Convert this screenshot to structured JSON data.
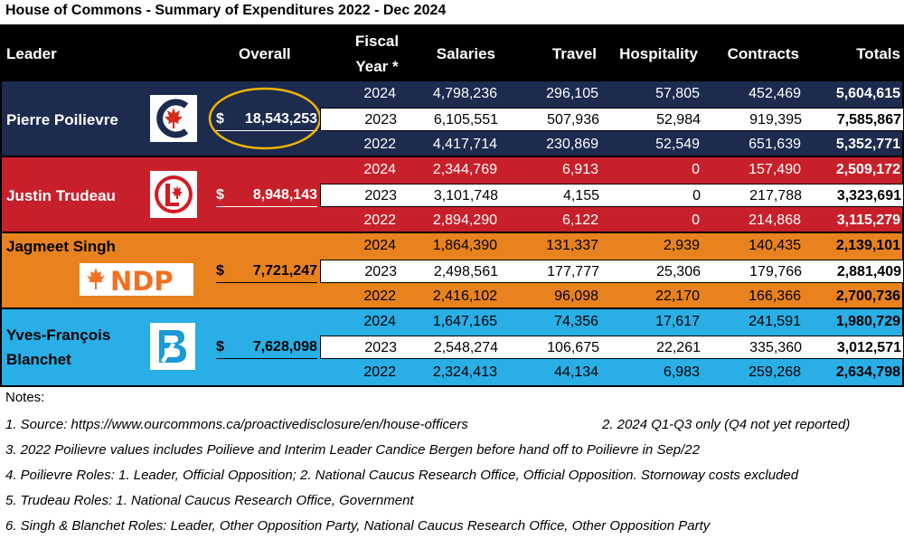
{
  "title": "House of Commons - Summary of Expenditures 2022 - Dec 2024",
  "colors": {
    "header_bg": "#000000",
    "conservative": "#1d2b4f",
    "liberal": "#c8202a",
    "ndp": "#e8821e",
    "bloc": "#29aee6",
    "highlight_circle": "#f0b400"
  },
  "headers": {
    "leader": "Leader",
    "overall": "Overall",
    "fiscal_year_line1": "Fiscal",
    "fiscal_year_line2": "Year *",
    "salaries": "Salaries",
    "travel": "Travel",
    "hospitality": "Hospitality",
    "contracts": "Contracts",
    "totals": "Totals"
  },
  "chart_data": {
    "type": "table",
    "title": "House of Commons - Summary of Expenditures 2022 - Dec 2024",
    "columns": [
      "Leader",
      "Overall",
      "Fiscal Year *",
      "Salaries",
      "Travel",
      "Hospitality",
      "Contracts",
      "Totals"
    ],
    "groups": [
      {
        "leader": "Pierre Poilievre",
        "logo": "conservative-logo-icon",
        "overall_symbol": "$",
        "overall": "18,543,253",
        "rows": [
          {
            "year": "2024",
            "salaries": "4,798,236",
            "travel": "296,105",
            "hospitality": "57,805",
            "contracts": "452,469",
            "totals": "5,604,615"
          },
          {
            "year": "2023",
            "salaries": "6,105,551",
            "travel": "507,936",
            "hospitality": "52,984",
            "contracts": "919,395",
            "totals": "7,585,867"
          },
          {
            "year": "2022",
            "salaries": "4,417,714",
            "travel": "230,869",
            "hospitality": "52,549",
            "contracts": "651,639",
            "totals": "5,352,771"
          }
        ]
      },
      {
        "leader": "Justin Trudeau",
        "logo": "liberal-logo-icon",
        "overall_symbol": "$",
        "overall": "8,948,143",
        "rows": [
          {
            "year": "2024",
            "salaries": "2,344,769",
            "travel": "6,913",
            "hospitality": "0",
            "contracts": "157,490",
            "totals": "2,509,172"
          },
          {
            "year": "2023",
            "salaries": "3,101,748",
            "travel": "4,155",
            "hospitality": "0",
            "contracts": "217,788",
            "totals": "3,323,691"
          },
          {
            "year": "2022",
            "salaries": "2,894,290",
            "travel": "6,122",
            "hospitality": "0",
            "contracts": "214,868",
            "totals": "3,115,279"
          }
        ]
      },
      {
        "leader": "Jagmeet Singh",
        "logo": "ndp-logo-icon",
        "logo_text": "NDP",
        "overall_symbol": "$",
        "overall": "7,721,247",
        "rows": [
          {
            "year": "2024",
            "salaries": "1,864,390",
            "travel": "131,337",
            "hospitality": "2,939",
            "contracts": "140,435",
            "totals": "2,139,101"
          },
          {
            "year": "2023",
            "salaries": "2,498,561",
            "travel": "177,777",
            "hospitality": "25,306",
            "contracts": "179,766",
            "totals": "2,881,409"
          },
          {
            "year": "2022",
            "salaries": "2,416,102",
            "travel": "96,098",
            "hospitality": "22,170",
            "contracts": "166,366",
            "totals": "2,700,736"
          }
        ]
      },
      {
        "leader_line1": "Yves-François",
        "leader_line2": "Blanchet",
        "logo": "bloc-logo-icon",
        "overall_symbol": "$",
        "overall": "7,628,098",
        "rows": [
          {
            "year": "2024",
            "salaries": "1,647,165",
            "travel": "74,356",
            "hospitality": "17,617",
            "contracts": "241,591",
            "totals": "1,980,729"
          },
          {
            "year": "2023",
            "salaries": "2,548,274",
            "travel": "106,675",
            "hospitality": "22,261",
            "contracts": "335,360",
            "totals": "3,012,571"
          },
          {
            "year": "2022",
            "salaries": "2,324,413",
            "travel": "44,134",
            "hospitality": "6,983",
            "contracts": "259,268",
            "totals": "2,634,798"
          }
        ]
      }
    ]
  },
  "notes": {
    "heading": "Notes:",
    "n1": "1. Source: https://www.ourcommons.ca/proactivedisclosure/en/house-officers",
    "n2": "2. 2024 Q1-Q3 only (Q4 not yet reported)",
    "n3": "3. 2022 Poilievre values includes Poilieve and Interim Leader Candice Bergen before hand off to Poilievre in Sep/22",
    "n4": "4. Poilievre Roles: 1. Leader, Official Opposition; 2. National Caucus Research Office, Official Opposition. Stornoway costs excluded",
    "n5": "5. Trudeau Roles: 1. National Caucus Research Office, Government",
    "n6": "6. Singh & Blanchet Roles: Leader, Other Opposition Party, National Caucus Research Office, Other Opposition Party"
  }
}
